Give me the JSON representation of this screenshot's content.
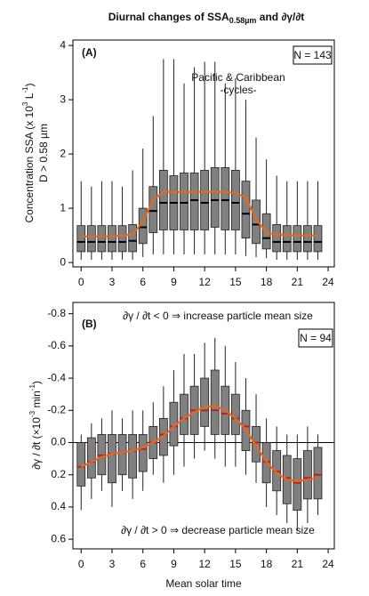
{
  "figure_title": [
    "Diurnal changes of SSA",
    "0.58µm",
    " and ∂γ/∂t"
  ],
  "chart_data": [
    {
      "type": "box",
      "panel_label": "(A)",
      "n_label": "N = 143",
      "annotations": [
        "Pacific & Caribbean",
        "-cycles-"
      ],
      "ylabel": [
        "Concentration SSA (x 10",
        "3",
        " L",
        "-1",
        ")"
      ],
      "ylabel2": "D > 0.58 µm",
      "xlim": [
        -0.8,
        24.6
      ],
      "xticks": [
        0,
        3,
        6,
        9,
        12,
        15,
        18,
        21,
        24
      ],
      "ylim": [
        -0.08,
        4.1
      ],
      "yticks": [
        0,
        1,
        2,
        3,
        4
      ],
      "x": [
        0,
        1,
        2,
        3,
        4,
        5,
        6,
        7,
        8,
        9,
        10,
        11,
        12,
        13,
        14,
        15,
        16,
        17,
        18,
        19,
        20,
        21,
        22,
        23
      ],
      "low": [
        0.05,
        0.05,
        0.05,
        0.05,
        0.05,
        0.05,
        0.1,
        0.15,
        0.15,
        0.15,
        0.15,
        0.15,
        0.15,
        0.15,
        0.15,
        0.15,
        0.12,
        0.1,
        0.08,
        0.05,
        0.05,
        0.05,
        0.05,
        0.05
      ],
      "q1": [
        0.2,
        0.2,
        0.2,
        0.2,
        0.2,
        0.2,
        0.35,
        0.55,
        0.6,
        0.6,
        0.6,
        0.6,
        0.6,
        0.65,
        0.6,
        0.6,
        0.45,
        0.35,
        0.25,
        0.2,
        0.2,
        0.2,
        0.2,
        0.2
      ],
      "median": [
        0.38,
        0.38,
        0.38,
        0.38,
        0.38,
        0.4,
        0.65,
        0.95,
        1.1,
        1.1,
        1.1,
        1.15,
        1.1,
        1.15,
        1.15,
        1.1,
        0.9,
        0.7,
        0.45,
        0.38,
        0.38,
        0.38,
        0.38,
        0.38
      ],
      "q3": [
        0.68,
        0.68,
        0.68,
        0.68,
        0.68,
        0.7,
        1.0,
        1.4,
        1.7,
        1.6,
        1.65,
        1.65,
        1.7,
        1.75,
        1.75,
        1.7,
        1.5,
        1.15,
        0.9,
        0.7,
        0.68,
        0.68,
        0.68,
        0.68
      ],
      "high": [
        1.5,
        1.4,
        1.5,
        1.5,
        1.4,
        1.7,
        2.1,
        2.7,
        3.75,
        3.75,
        3.3,
        3.6,
        3.7,
        3.7,
        3.3,
        3.4,
        3.0,
        2.3,
        1.9,
        1.6,
        1.5,
        1.5,
        1.5,
        1.5
      ],
      "box_color": "#808080",
      "median_color": "#000000",
      "line": {
        "color": "#e8661e",
        "values": [
          0.48,
          0.48,
          0.48,
          0.48,
          0.5,
          0.52,
          0.75,
          1.15,
          1.3,
          1.3,
          1.3,
          1.3,
          1.3,
          1.3,
          1.3,
          1.28,
          1.2,
          0.8,
          0.55,
          0.52,
          0.5,
          0.5,
          0.5,
          0.5
        ]
      }
    },
    {
      "type": "box",
      "panel_label": "(B)",
      "n_label": "N = 94",
      "annotations": [
        "∂γ / ∂t < 0 ⇒ increase particle mean size",
        "∂γ / ∂t > 0 ⇒ decrease particle mean size"
      ],
      "ylabel": [
        "∂γ / ∂t (×10",
        "-3",
        " min",
        "-1",
        ")"
      ],
      "xlabel": "Mean solar time",
      "xlim": [
        -0.8,
        24.6
      ],
      "xticks": [
        0,
        3,
        6,
        9,
        12,
        15,
        18,
        21,
        24
      ],
      "ylim": [
        0.66,
        -0.87
      ],
      "yticks": [
        -0.8,
        -0.6,
        -0.4,
        -0.2,
        {
          "value": 0,
          "label": "0.0"
        },
        0.2,
        0.4,
        0.6
      ],
      "zero_line": true,
      "x": [
        0,
        1,
        2,
        3,
        4,
        5,
        6,
        7,
        8,
        9,
        10,
        11,
        12,
        13,
        14,
        15,
        16,
        17,
        18,
        19,
        20,
        21,
        22,
        23
      ],
      "low": [
        -0.05,
        -0.12,
        -0.15,
        -0.2,
        -0.15,
        -0.2,
        -0.2,
        -0.25,
        -0.35,
        -0.45,
        -0.55,
        -0.55,
        -0.62,
        -0.65,
        -0.6,
        -0.5,
        -0.4,
        -0.3,
        -0.15,
        -0.1,
        -0.05,
        -0.05,
        -0.1,
        -0.05
      ],
      "q1": [
        0.0,
        -0.03,
        -0.05,
        -0.05,
        -0.05,
        -0.05,
        -0.05,
        -0.1,
        -0.15,
        -0.25,
        -0.3,
        -0.35,
        -0.4,
        -0.45,
        -0.35,
        -0.3,
        -0.2,
        -0.1,
        0.0,
        0.05,
        0.08,
        0.1,
        0.05,
        0.03
      ],
      "median": [
        0.15,
        0.12,
        0.08,
        0.07,
        0.06,
        0.05,
        0.04,
        0.0,
        -0.05,
        -0.1,
        -0.15,
        -0.2,
        -0.2,
        -0.2,
        -0.18,
        -0.15,
        -0.1,
        0.0,
        0.12,
        0.18,
        0.22,
        0.25,
        0.22,
        0.2
      ],
      "q3": [
        0.27,
        0.22,
        0.2,
        0.25,
        0.2,
        0.22,
        0.18,
        0.1,
        0.08,
        0.02,
        -0.05,
        -0.05,
        -0.1,
        -0.05,
        -0.05,
        -0.05,
        0.05,
        0.12,
        0.25,
        0.3,
        0.38,
        0.42,
        0.35,
        0.35
      ],
      "high": [
        0.42,
        0.35,
        0.3,
        0.4,
        0.3,
        0.35,
        0.3,
        0.2,
        0.25,
        0.2,
        0.15,
        0.1,
        0.05,
        0.1,
        0.15,
        0.15,
        0.2,
        0.25,
        0.4,
        0.45,
        0.5,
        0.55,
        0.5,
        0.45
      ],
      "box_color": "#808080",
      "median_color": "#c0201a",
      "line": {
        "color": "#e8661e",
        "values": [
          0.15,
          0.12,
          0.09,
          0.07,
          0.06,
          0.05,
          0.03,
          0.0,
          -0.04,
          -0.1,
          -0.15,
          -0.19,
          -0.22,
          -0.23,
          -0.2,
          -0.15,
          -0.08,
          0.02,
          0.12,
          0.19,
          0.23,
          0.24,
          0.23,
          0.22
        ]
      }
    }
  ]
}
